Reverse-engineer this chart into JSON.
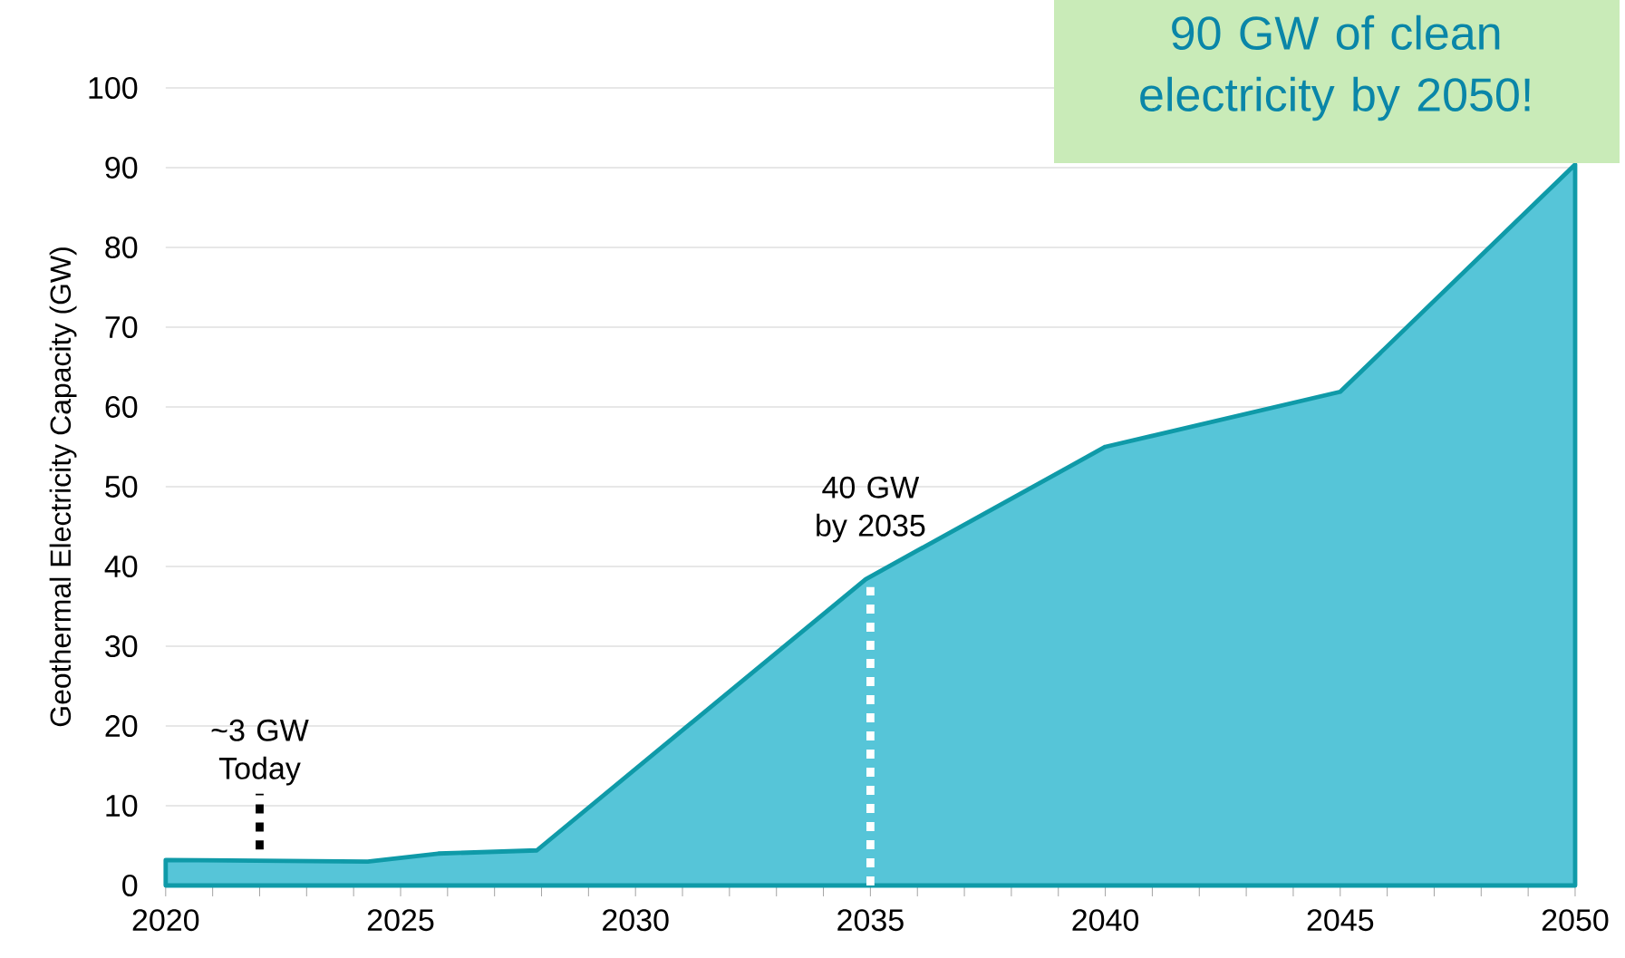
{
  "chart_data": {
    "type": "area",
    "ylabel": "Geothermal Electricity Capacity (GW)",
    "x": [
      2020,
      2024.3,
      2025.8,
      2027.9,
      2034.9,
      2040,
      2045,
      2050
    ],
    "series": [
      {
        "color": "#56c5d8",
        "values": [
          3.2,
          3.0,
          4.0,
          4.4,
          38.4,
          55,
          61.9,
          90.4
        ]
      }
    ],
    "xlim": [
      2020,
      2050
    ],
    "ylim": [
      0,
      100
    ],
    "xticks": [
      2020,
      {
        "value": 2021,
        "label": null
      },
      {
        "value": 2022,
        "label": null
      },
      {
        "value": 2023,
        "label": null
      },
      {
        "value": 2024,
        "label": null
      },
      2025,
      {
        "value": 2026,
        "label": null
      },
      {
        "value": 2027,
        "label": null
      },
      {
        "value": 2028,
        "label": null
      },
      {
        "value": 2029,
        "label": null
      },
      2030,
      {
        "value": 2031,
        "label": null
      },
      {
        "value": 2032,
        "label": null
      },
      {
        "value": 2033,
        "label": null
      },
      {
        "value": 2034,
        "label": null
      },
      2035,
      {
        "value": 2036,
        "label": null
      },
      {
        "value": 2037,
        "label": null
      },
      {
        "value": 2038,
        "label": null
      },
      {
        "value": 2039,
        "label": null
      },
      2040,
      {
        "value": 2041,
        "label": null
      },
      {
        "value": 2042,
        "label": null
      },
      {
        "value": 2043,
        "label": null
      },
      {
        "value": 2044,
        "label": null
      },
      2045,
      {
        "value": 2046,
        "label": null
      },
      {
        "value": 2047,
        "label": null
      },
      {
        "value": 2048,
        "label": null
      },
      {
        "value": 2049,
        "label": null
      },
      2050
    ],
    "yticks": [
      0,
      10,
      20,
      30,
      40,
      50,
      60,
      70,
      80,
      90,
      100
    ],
    "grid": "y",
    "annotations": [
      {
        "text": "~3 GW Today",
        "x": 2022,
        "y": 3
      },
      {
        "text": "40 GW by 2035",
        "x": 2035,
        "y": 38.4
      },
      "90 GW of clean electricity by 2050!"
    ]
  }
}
